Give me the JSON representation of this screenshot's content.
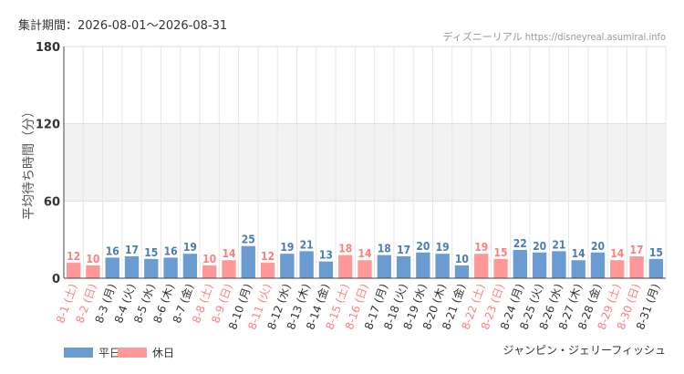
{
  "header": {
    "period_label": "集計期間：",
    "period_range": "2026-08-01～2026-08-31",
    "credit": "ディズニーリアル https://disneyreal.asumirai.info"
  },
  "attraction": "ジャンピン・ジェリーフィッシュ",
  "colors": {
    "weekday": "#6a9bd1",
    "weekday_label": "#4a7db5",
    "holiday": "#ff9999",
    "holiday_label": "#ff7f7f",
    "weekday_tick": "#333333",
    "holiday_tick": "#ff7f7f"
  },
  "legend": [
    {
      "key": "weekday",
      "label": "平日"
    },
    {
      "key": "holiday",
      "label": "休日"
    }
  ],
  "chart_data": {
    "type": "bar",
    "ylabel": "平均待ち時間（分）",
    "ylim": [
      0,
      180
    ],
    "yticks": [
      0,
      60,
      120,
      180
    ],
    "categories": [
      "8-1 (土)",
      "8-2 (日)",
      "8-3 (月)",
      "8-4 (火)",
      "8-5 (水)",
      "8-6 (木)",
      "8-7 (金)",
      "8-8 (土)",
      "8-9 (日)",
      "8-10 (月)",
      "8-11 (火)",
      "8-12 (水)",
      "8-13 (木)",
      "8-14 (金)",
      "8-15 (土)",
      "8-16 (日)",
      "8-17 (月)",
      "8-18 (火)",
      "8-19 (水)",
      "8-20 (木)",
      "8-21 (金)",
      "8-22 (土)",
      "8-23 (日)",
      "8-24 (月)",
      "8-25 (火)",
      "8-26 (水)",
      "8-27 (木)",
      "8-28 (金)",
      "8-29 (土)",
      "8-30 (日)",
      "8-31 (月)"
    ],
    "values": [
      12,
      10,
      16,
      17,
      15,
      16,
      19,
      10,
      14,
      25,
      12,
      19,
      21,
      13,
      18,
      14,
      18,
      17,
      20,
      19,
      10,
      19,
      15,
      22,
      20,
      21,
      14,
      20,
      14,
      17,
      15
    ],
    "day_type": [
      "holiday",
      "holiday",
      "weekday",
      "weekday",
      "weekday",
      "weekday",
      "weekday",
      "holiday",
      "holiday",
      "weekday",
      "holiday",
      "weekday",
      "weekday",
      "weekday",
      "holiday",
      "holiday",
      "weekday",
      "weekday",
      "weekday",
      "weekday",
      "weekday",
      "holiday",
      "holiday",
      "weekday",
      "weekday",
      "weekday",
      "weekday",
      "weekday",
      "holiday",
      "holiday",
      "weekday"
    ],
    "series": [
      {
        "name": "平日"
      },
      {
        "name": "休日"
      }
    ]
  }
}
